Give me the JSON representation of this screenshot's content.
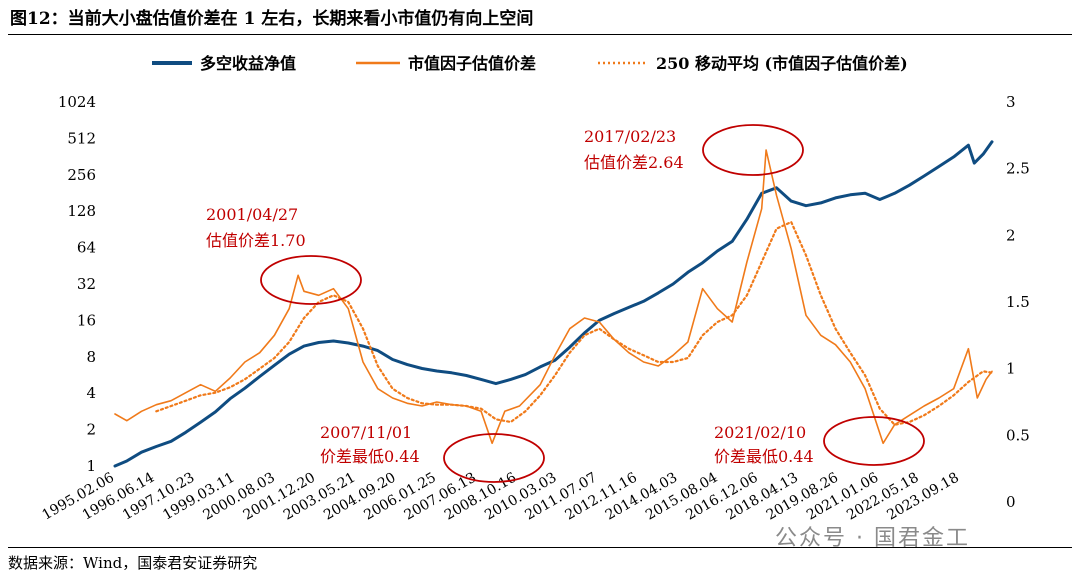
{
  "title": "图12：当前大小盘估值价差在 1 左右，长期来看小市值仍有向上空间",
  "source": "数据来源：Wind，国泰君安证券研究",
  "watermark": "公众号 · 国君金工",
  "colors": {
    "navy": "#0f4c81",
    "orange": "#f07a1a",
    "red": "#c00000"
  },
  "chart_data": {
    "type": "line",
    "title": "",
    "legend": {
      "placement": "top",
      "entries": [
        "多空收益净值",
        "市值因子估值价差",
        "250 移动平均 (市值因子估值价差)"
      ]
    },
    "x_tick_labels": [
      "1995.02.06",
      "1996.06.14",
      "1997.10.23",
      "1999.03.11",
      "2000.08.03",
      "2001.12.20",
      "2003.05.21",
      "2004.09.20",
      "2006.01.25",
      "2007.06.13",
      "2008.10.16",
      "2010.03.03",
      "2011.07.07",
      "2012.11.16",
      "2014.04.03",
      "2015.08.04",
      "2016.12.06",
      "2018.04.13",
      "2019.08.26",
      "2021.01.06",
      "2022.05.18",
      "2023.09.18"
    ],
    "y_left": {
      "scale": "log2",
      "range": [
        1,
        1024
      ],
      "ticks": [
        "1",
        "2",
        "4",
        "8",
        "16",
        "32",
        "64",
        "128",
        "256",
        "512",
        "1024"
      ]
    },
    "y_right": {
      "scale": "linear",
      "range": [
        0,
        3
      ],
      "ticks": [
        "0",
        "0.5",
        "1",
        "1.5",
        "2",
        "2.5",
        "3"
      ]
    },
    "grid": false,
    "series": [
      {
        "name": "多空收益净值",
        "axis": "left",
        "style": "solid",
        "x": [
          1995.1,
          1995.5,
          1996.0,
          1996.5,
          1997.0,
          1997.5,
          1998.0,
          1998.5,
          1999.0,
          1999.5,
          2000.0,
          2000.5,
          2001.0,
          2001.5,
          2002.0,
          2002.5,
          2003.0,
          2003.5,
          2004.0,
          2004.5,
          2005.0,
          2005.5,
          2006.0,
          2006.5,
          2007.0,
          2007.5,
          2008.0,
          2008.5,
          2009.0,
          2009.5,
          2010.0,
          2010.5,
          2011.0,
          2011.5,
          2012.0,
          2012.5,
          2013.0,
          2013.5,
          2014.0,
          2014.5,
          2015.0,
          2015.5,
          2016.0,
          2016.5,
          2017.0,
          2017.5,
          2018.0,
          2018.5,
          2019.0,
          2019.5,
          2020.0,
          2020.5,
          2021.0,
          2021.5,
          2022.0,
          2022.5,
          2023.0,
          2023.5,
          2024.0,
          2024.2,
          2024.5,
          2024.8
        ],
        "y": [
          1.0,
          1.1,
          1.3,
          1.45,
          1.6,
          1.9,
          2.3,
          2.8,
          3.6,
          4.4,
          5.5,
          6.8,
          8.4,
          9.8,
          10.5,
          10.8,
          10.4,
          9.8,
          9.0,
          7.6,
          6.9,
          6.4,
          6.1,
          5.9,
          5.6,
          5.2,
          4.8,
          5.2,
          5.7,
          6.6,
          7.5,
          9.6,
          12.6,
          16.0,
          18.2,
          20.5,
          23.0,
          27.0,
          32.0,
          40.0,
          48.0,
          60.0,
          72.0,
          110.0,
          180.0,
          200.0,
          155.0,
          142.0,
          150.0,
          165.0,
          175.0,
          180.0,
          160.0,
          180.0,
          210.0,
          250.0,
          300.0,
          360.0,
          450.0,
          320.0,
          380.0,
          480.0
        ]
      },
      {
        "name": "市值因子估值价差",
        "axis": "right",
        "style": "solid",
        "x": [
          1995.1,
          1995.5,
          1996.0,
          1996.5,
          1997.0,
          1997.5,
          1998.0,
          1998.5,
          1999.0,
          1999.5,
          2000.0,
          2000.5,
          2001.0,
          2001.3,
          2001.5,
          2002.0,
          2002.5,
          2003.0,
          2003.5,
          2004.0,
          2004.5,
          2005.0,
          2005.5,
          2006.0,
          2006.5,
          2007.0,
          2007.5,
          2007.87,
          2008.3,
          2008.8,
          2009.5,
          2010.0,
          2010.5,
          2011.0,
          2011.5,
          2012.0,
          2012.5,
          2013.0,
          2013.5,
          2014.0,
          2014.5,
          2015.0,
          2015.5,
          2016.0,
          2016.5,
          2017.0,
          2017.15,
          2017.5,
          2018.0,
          2018.5,
          2019.0,
          2019.5,
          2020.0,
          2020.5,
          2021.11,
          2021.5,
          2022.0,
          2022.5,
          2023.0,
          2023.5,
          2024.0,
          2024.3,
          2024.6,
          2024.8
        ],
        "y": [
          0.66,
          0.61,
          0.68,
          0.73,
          0.76,
          0.82,
          0.88,
          0.83,
          0.93,
          1.05,
          1.12,
          1.25,
          1.45,
          1.7,
          1.58,
          1.55,
          1.6,
          1.45,
          1.05,
          0.85,
          0.78,
          0.74,
          0.72,
          0.75,
          0.73,
          0.72,
          0.68,
          0.44,
          0.68,
          0.72,
          0.88,
          1.1,
          1.3,
          1.38,
          1.35,
          1.22,
          1.12,
          1.05,
          1.02,
          1.1,
          1.2,
          1.6,
          1.45,
          1.35,
          1.8,
          2.2,
          2.64,
          2.3,
          1.9,
          1.4,
          1.25,
          1.18,
          1.05,
          0.85,
          0.44,
          0.58,
          0.65,
          0.72,
          0.78,
          0.85,
          1.15,
          0.78,
          0.92,
          0.98
        ]
      },
      {
        "name": "250 移动平均 (市值因子估值价差)",
        "axis": "right",
        "style": "dotted",
        "x": [
          1996.5,
          1997.0,
          1997.5,
          1998.0,
          1998.5,
          1999.0,
          1999.5,
          2000.0,
          2000.5,
          2001.0,
          2001.5,
          2002.0,
          2002.5,
          2003.0,
          2003.5,
          2004.0,
          2004.5,
          2005.0,
          2005.5,
          2006.0,
          2006.5,
          2007.0,
          2007.5,
          2008.0,
          2008.5,
          2009.0,
          2009.5,
          2010.0,
          2010.5,
          2011.0,
          2011.5,
          2012.0,
          2012.5,
          2013.0,
          2013.5,
          2014.0,
          2014.5,
          2015.0,
          2015.5,
          2016.0,
          2016.5,
          2017.0,
          2017.5,
          2018.0,
          2018.5,
          2019.0,
          2019.5,
          2020.0,
          2020.5,
          2021.0,
          2021.5,
          2022.0,
          2022.5,
          2023.0,
          2023.5,
          2024.0,
          2024.5,
          2024.8
        ],
        "y": [
          0.68,
          0.72,
          0.76,
          0.8,
          0.82,
          0.86,
          0.92,
          1.0,
          1.08,
          1.2,
          1.38,
          1.5,
          1.55,
          1.5,
          1.3,
          1.02,
          0.85,
          0.78,
          0.74,
          0.73,
          0.73,
          0.72,
          0.7,
          0.62,
          0.6,
          0.68,
          0.8,
          0.95,
          1.12,
          1.25,
          1.3,
          1.22,
          1.15,
          1.1,
          1.05,
          1.05,
          1.08,
          1.25,
          1.35,
          1.4,
          1.55,
          1.8,
          2.05,
          2.1,
          1.85,
          1.55,
          1.3,
          1.12,
          0.95,
          0.7,
          0.58,
          0.6,
          0.65,
          0.72,
          0.8,
          0.9,
          0.98,
          0.97
        ]
      }
    ],
    "annotations": [
      {
        "date": "2001/04/27",
        "text": "估值价差1.70"
      },
      {
        "date": "2007/11/01",
        "text": "价差最低0.44"
      },
      {
        "date": "2017/02/23",
        "text": "估值价差2.64"
      },
      {
        "date": "2021/02/10",
        "text": "价差最低0.44"
      }
    ]
  }
}
